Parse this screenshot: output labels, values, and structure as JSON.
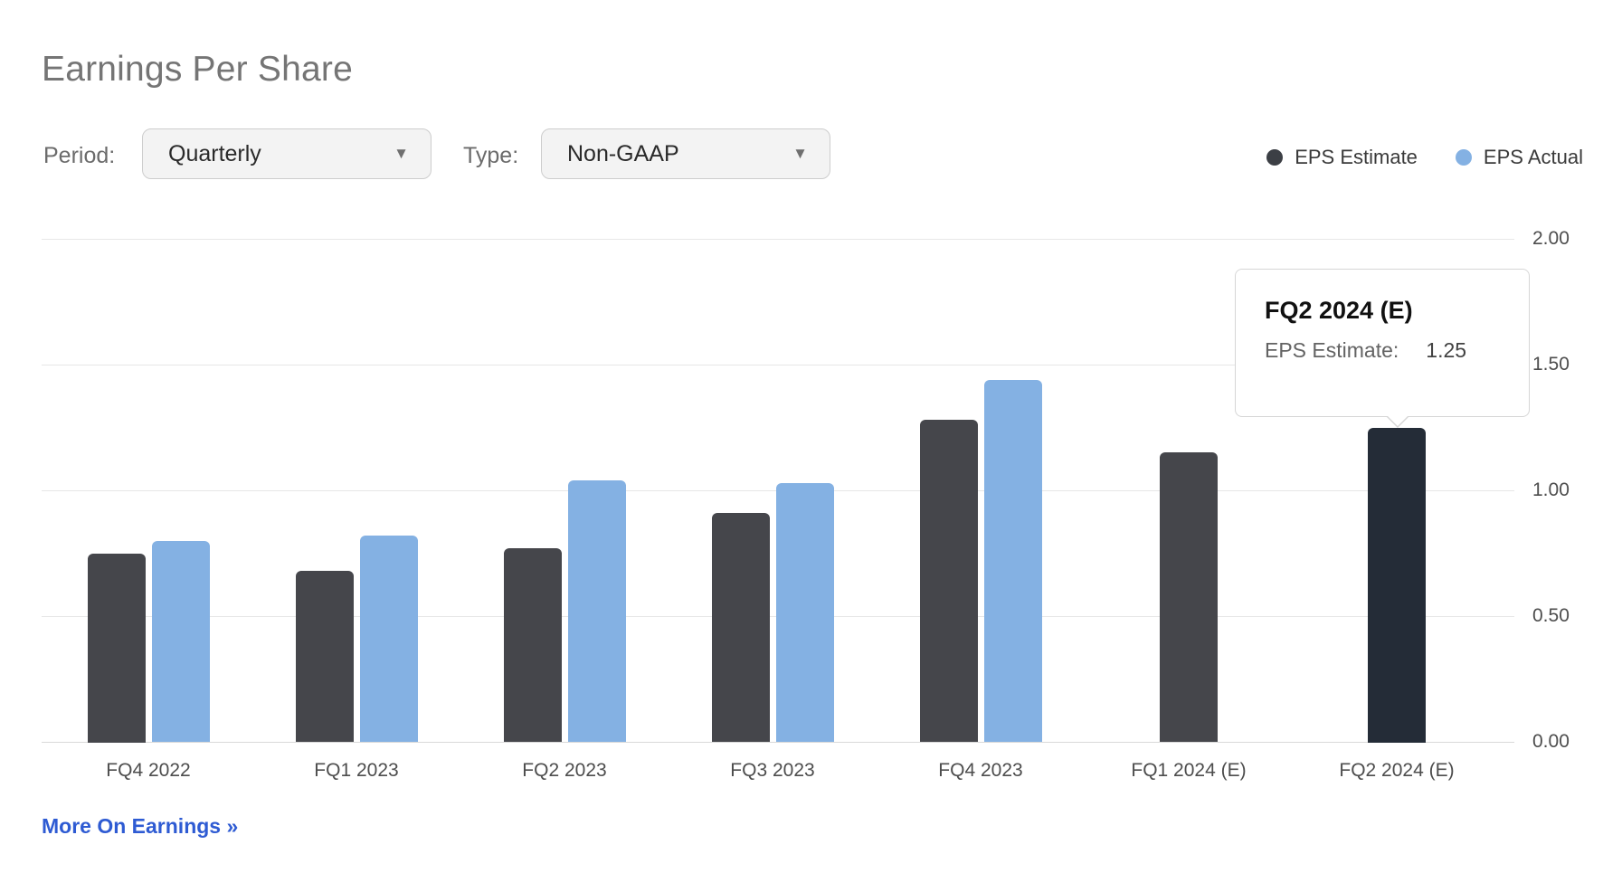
{
  "page": {
    "title": "Earnings Per Share"
  },
  "controls": {
    "period_label": "Period:",
    "period_value": "Quarterly",
    "type_label": "Type:",
    "type_value": "Non-GAAP",
    "dropdown_arrow": "▼"
  },
  "legend": [
    {
      "label": "EPS Estimate",
      "color": "#3c3f45"
    },
    {
      "label": "EPS Actual",
      "color": "#84b1e3"
    }
  ],
  "chart_data": {
    "type": "bar",
    "categories": [
      "FQ4 2022",
      "FQ1 2023",
      "FQ2 2023",
      "FQ3 2023",
      "FQ4 2023",
      "FQ1 2024 (E)",
      "FQ2 2024 (E)"
    ],
    "series": [
      {
        "name": "EPS Estimate",
        "color": "#45464b",
        "values": [
          0.75,
          0.68,
          0.77,
          0.91,
          1.28,
          1.15,
          1.25
        ]
      },
      {
        "name": "EPS Actual",
        "color": "#84b1e3",
        "values": [
          0.8,
          0.82,
          1.04,
          1.03,
          1.44,
          null,
          null
        ]
      }
    ],
    "ylim": [
      0,
      2
    ],
    "yticks": [
      "2.00",
      "1.50",
      "1.00",
      "0.50",
      "0.00"
    ],
    "ytick_values": [
      2.0,
      1.5,
      1.0,
      0.5,
      0.0
    ],
    "grid": true,
    "legend_position": "top-right",
    "highlight": {
      "category": "FQ2 2024 (E)",
      "series": "EPS Estimate",
      "index": 6,
      "bar_color": "#242c37"
    }
  },
  "tooltip": {
    "title": "FQ2 2024 (E)",
    "label": "EPS Estimate:",
    "value": "1.25"
  },
  "footer": {
    "link_label": "More On Earnings »"
  }
}
